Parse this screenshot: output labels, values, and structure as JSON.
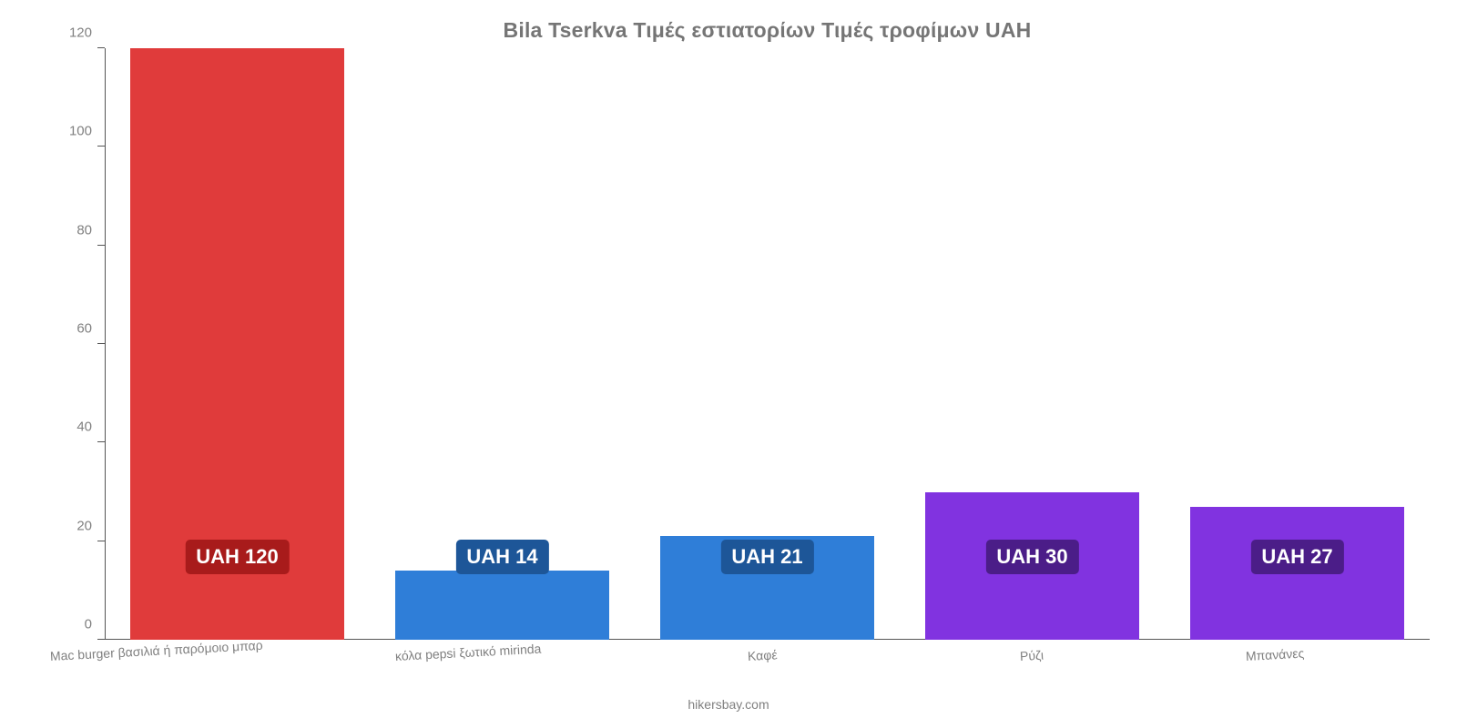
{
  "chart": {
    "type": "bar",
    "title": "Bila Tserkva Τιμές εστιατορίων Τιμές τροφίμων UAH",
    "title_fontsize": 23,
    "title_color": "#757575",
    "background_color": "#ffffff",
    "axis_color": "#555555",
    "tick_label_color": "#808080",
    "tick_label_fontsize": 15,
    "x_label_fontsize": 14,
    "x_label_rotation_deg": -3,
    "ylim": [
      0,
      120
    ],
    "ytick_step": 20,
    "yticks": [
      0,
      20,
      40,
      60,
      80,
      100,
      120
    ],
    "bar_width_pct": 16.2,
    "bar_gap_pct": 3.8,
    "value_label_fontsize": 22,
    "value_label_text_color": "#ffffff",
    "value_labels_vertical_center_pct_from_bottom": 14,
    "categories": [
      "Mac burger βασιλιά ή παρόμοιο μπαρ",
      "κόλα pepsi ξωτικό mirinda",
      "Καφέ",
      "Ρύζι",
      "Μπανάνες"
    ],
    "values": [
      120,
      14,
      21,
      30,
      27
    ],
    "value_labels": [
      "UAH 120",
      "UAH 14",
      "UAH 21",
      "UAH 30",
      "UAH 27"
    ],
    "bar_colors": [
      "#e03b3b",
      "#2f7ed8",
      "#2f7ed8",
      "#8133e0",
      "#8133e0"
    ],
    "value_label_bg_colors": [
      "#a81b1b",
      "#1d5698",
      "#1d5698",
      "#4b1d88",
      "#4b1d88"
    ],
    "x_label_left_offsets_pct": [
      -6.0,
      0.0,
      6.6,
      7.2,
      4.2
    ]
  },
  "source": "hikersbay.com"
}
